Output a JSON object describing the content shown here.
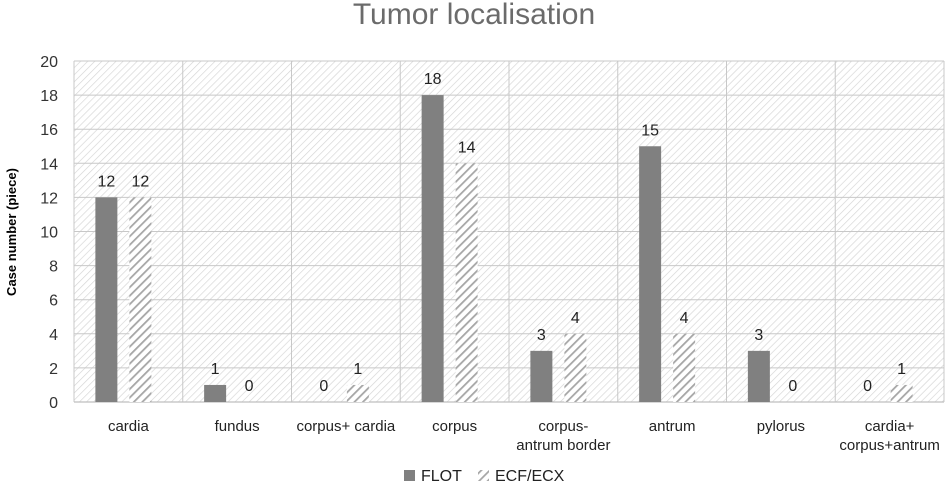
{
  "chart_data": {
    "type": "bar",
    "title": "Tumor localisation",
    "xlabel": "",
    "ylabel": "Case number (piece)",
    "ylim": [
      0,
      20
    ],
    "yticks": [
      0,
      2,
      4,
      6,
      8,
      10,
      12,
      14,
      16,
      18,
      20
    ],
    "grid": true,
    "legend_position": "bottom",
    "categories": [
      [
        "cardia"
      ],
      [
        "fundus"
      ],
      [
        "corpus+ cardia"
      ],
      [
        "corpus"
      ],
      [
        "corpus-",
        "antrum border"
      ],
      [
        "antrum"
      ],
      [
        "pylorus"
      ],
      [
        "cardia+",
        "corpus+antrum"
      ]
    ],
    "series": [
      {
        "name": "FLOT",
        "values": [
          12,
          1,
          0,
          18,
          3,
          15,
          3,
          0
        ],
        "color": "#808080",
        "pattern": "solid"
      },
      {
        "name": "ECF/ECX",
        "values": [
          12,
          0,
          1,
          14,
          4,
          4,
          0,
          1
        ],
        "color": "#a6a6a6",
        "pattern": "diagonal-stripes"
      }
    ]
  }
}
